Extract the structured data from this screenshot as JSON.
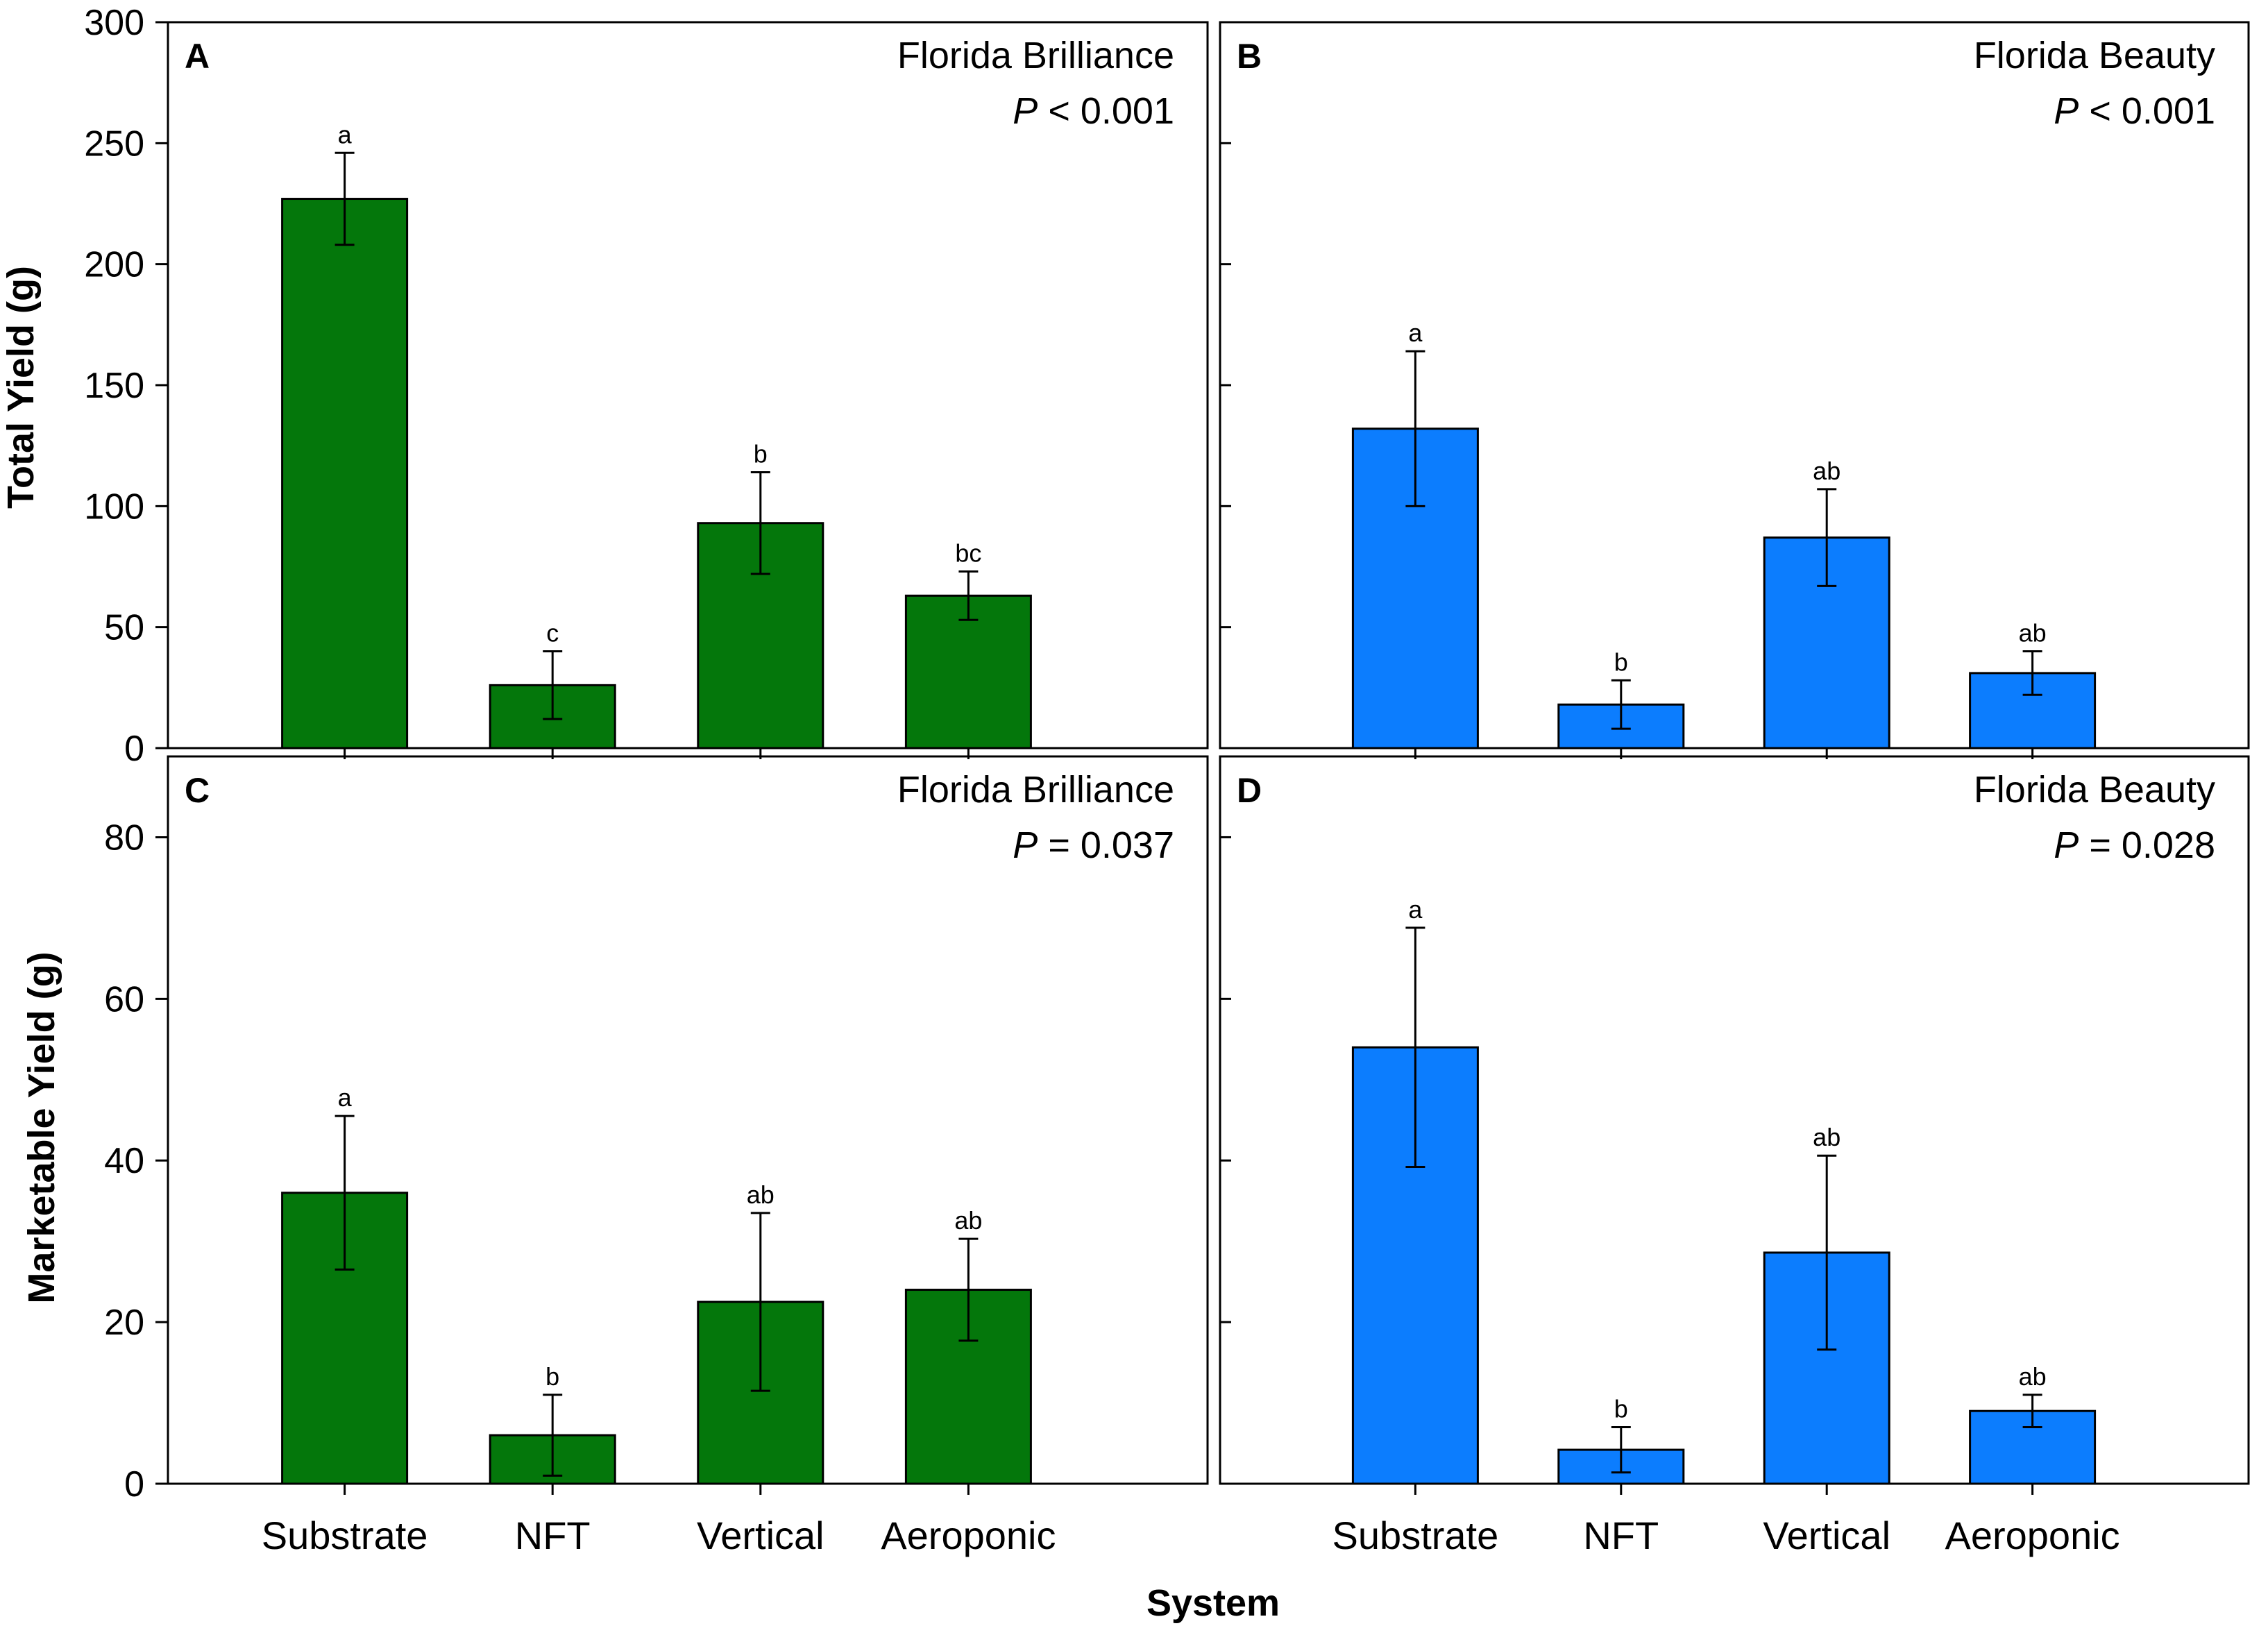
{
  "figure": {
    "ylabel_top": "Total Yield (g)",
    "ylabel_bottom": "Marketable Yield (g)",
    "xlabel": "System",
    "colors": {
      "green": "#04770b",
      "blue": "#0c7dfe"
    }
  },
  "chart_data": [
    {
      "panel": "A",
      "type": "bar",
      "title": "Florida Brilliance",
      "p_symbol": "P",
      "p_text": " < 0.001",
      "categories": [
        "Substrate",
        "NFT",
        "Vertical",
        "Aeroponic"
      ],
      "values": [
        227,
        26,
        93,
        63
      ],
      "errors": [
        19,
        14,
        21,
        10
      ],
      "letters": [
        "a",
        "c",
        "b",
        "bc"
      ],
      "ylim": [
        0,
        300
      ],
      "yticks": [
        0,
        50,
        100,
        150,
        200,
        250,
        300
      ],
      "ylabel": "Total Yield (g)",
      "color": "#04770b"
    },
    {
      "panel": "B",
      "type": "bar",
      "title": "Florida Beauty",
      "p_symbol": "P",
      "p_text": " < 0.001",
      "categories": [
        "Substrate",
        "NFT",
        "Vertical",
        "Aeroponic"
      ],
      "values": [
        132,
        18,
        87,
        31
      ],
      "errors": [
        32,
        10,
        20,
        9
      ],
      "letters": [
        "a",
        "b",
        "ab",
        "ab"
      ],
      "ylim": [
        0,
        300
      ],
      "yticks": [
        0,
        50,
        100,
        150,
        200,
        250,
        300
      ],
      "ylabel": "Total Yield (g)",
      "color": "#0c7dfe"
    },
    {
      "panel": "C",
      "type": "bar",
      "title": "Florida Brilliance",
      "p_symbol": "P",
      "p_text": " = 0.037",
      "categories": [
        "Substrate",
        "NFT",
        "Vertical",
        "Aeroponic"
      ],
      "values": [
        36,
        6,
        22.5,
        24
      ],
      "errors": [
        9.5,
        5,
        11,
        6.3
      ],
      "letters": [
        "a",
        "b",
        "ab",
        "ab"
      ],
      "ylim": [
        0,
        90
      ],
      "yticks": [
        0,
        20,
        40,
        60,
        80
      ],
      "ylabel": "Marketable Yield (g)",
      "color": "#04770b"
    },
    {
      "panel": "D",
      "type": "bar",
      "title": "Florida Beauty",
      "p_symbol": "P",
      "p_text": " = 0.028",
      "categories": [
        "Substrate",
        "NFT",
        "Vertical",
        "Aeroponic"
      ],
      "values": [
        54,
        4.2,
        28.6,
        9
      ],
      "errors": [
        14.8,
        2.8,
        12,
        2
      ],
      "letters": [
        "a",
        "b",
        "ab",
        "ab"
      ],
      "ylim": [
        0,
        90
      ],
      "yticks": [
        0,
        20,
        40,
        60,
        80
      ],
      "ylabel": "Marketable Yield (g)",
      "color": "#0c7dfe"
    }
  ]
}
